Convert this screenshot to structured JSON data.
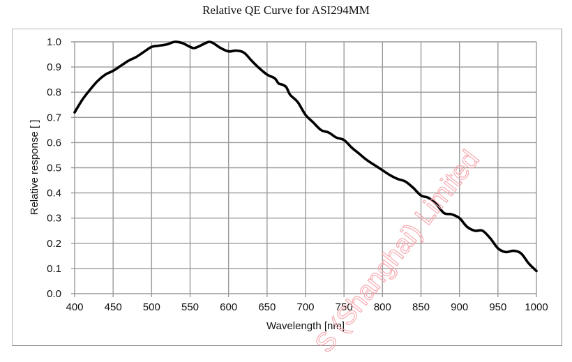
{
  "chart_data": {
    "type": "line",
    "title": "Relative QE Curve for ASI294MM",
    "xlabel": "Wavelength [nm]",
    "ylabel": "Relative response [ ]",
    "xlim": [
      400,
      1000
    ],
    "ylim": [
      0.0,
      1.0
    ],
    "grid": true,
    "legend": null,
    "x_ticks": [
      "400",
      "450",
      "500",
      "550",
      "600",
      "650",
      "700",
      "750",
      "800",
      "850",
      "900",
      "950",
      "1000"
    ],
    "y_ticks": [
      "0.0",
      "0.1",
      "0.2",
      "0.3",
      "0.4",
      "0.5",
      "0.6",
      "0.7",
      "0.8",
      "0.9",
      "1.0"
    ],
    "series": [
      {
        "name": "Relative QE",
        "color": "#000000",
        "x": [
          400,
          410,
          420,
          430,
          440,
          450,
          460,
          470,
          480,
          490,
          500,
          510,
          520,
          530,
          540,
          550,
          555,
          560,
          570,
          575,
          580,
          590,
          600,
          610,
          620,
          630,
          640,
          650,
          660,
          665,
          670,
          675,
          680,
          690,
          700,
          710,
          720,
          730,
          740,
          750,
          760,
          770,
          780,
          790,
          800,
          810,
          820,
          830,
          840,
          850,
          860,
          870,
          880,
          890,
          900,
          910,
          920,
          930,
          940,
          950,
          960,
          970,
          980,
          990,
          1000
        ],
        "values": [
          0.72,
          0.77,
          0.81,
          0.845,
          0.87,
          0.885,
          0.905,
          0.925,
          0.94,
          0.96,
          0.98,
          0.985,
          0.99,
          1.0,
          0.995,
          0.98,
          0.975,
          0.98,
          0.995,
          1.0,
          0.995,
          0.975,
          0.962,
          0.965,
          0.957,
          0.925,
          0.895,
          0.87,
          0.855,
          0.835,
          0.83,
          0.82,
          0.79,
          0.76,
          0.71,
          0.68,
          0.65,
          0.64,
          0.62,
          0.61,
          0.58,
          0.555,
          0.53,
          0.51,
          0.49,
          0.47,
          0.455,
          0.445,
          0.42,
          0.39,
          0.38,
          0.355,
          0.32,
          0.315,
          0.3,
          0.265,
          0.25,
          0.25,
          0.22,
          0.18,
          0.165,
          0.17,
          0.16,
          0.12,
          0.09
        ]
      }
    ],
    "annotations": [
      "S (Shanghai) Limited (watermark, pink, rotated)"
    ]
  },
  "watermark": {
    "text": "S (Shanghai) Limited",
    "color": "#f5a5ac"
  }
}
